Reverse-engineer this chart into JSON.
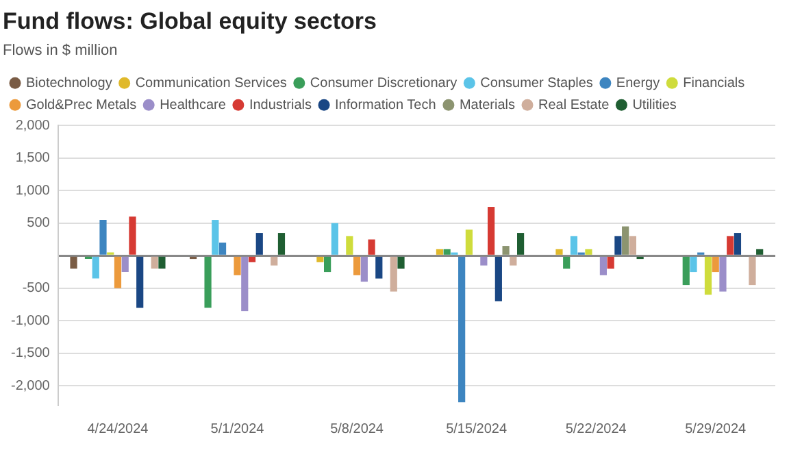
{
  "chart_data": {
    "type": "bar",
    "title": "Fund flows: Global equity sectors",
    "subtitle": "Flows in $ million",
    "categories": [
      "4/24/2024",
      "5/1/2024",
      "5/8/2024",
      "5/15/2024",
      "5/22/2024",
      "5/29/2024"
    ],
    "series": [
      {
        "name": "Biotechnology",
        "color": "#7a5c45",
        "values": [
          -200,
          -50,
          0,
          0,
          0,
          0
        ]
      },
      {
        "name": "Communication Services",
        "color": "#e0b92b",
        "values": [
          0,
          0,
          -100,
          100,
          100,
          0
        ]
      },
      {
        "name": "Consumer Discretionary",
        "color": "#3a9e5a",
        "values": [
          -50,
          -800,
          -250,
          100,
          -200,
          -450
        ]
      },
      {
        "name": "Consumer Staples",
        "color": "#5bc4e8",
        "values": [
          -350,
          550,
          500,
          50,
          300,
          -250
        ]
      },
      {
        "name": "Energy",
        "color": "#3d85c0",
        "values": [
          550,
          200,
          0,
          -2250,
          50,
          50
        ]
      },
      {
        "name": "Financials",
        "color": "#cfdc3c",
        "values": [
          50,
          0,
          300,
          400,
          100,
          -600
        ]
      },
      {
        "name": "Gold&Prec Metals",
        "color": "#ec9a3c",
        "values": [
          -500,
          -300,
          -300,
          0,
          0,
          -250
        ]
      },
      {
        "name": "Healthcare",
        "color": "#9b8ec9",
        "values": [
          -250,
          -850,
          -400,
          -150,
          -300,
          -550
        ]
      },
      {
        "name": "Industrials",
        "color": "#d63a33",
        "values": [
          600,
          -100,
          250,
          750,
          -200,
          300
        ]
      },
      {
        "name": "Information Tech",
        "color": "#1a4784",
        "values": [
          -800,
          350,
          -350,
          -700,
          300,
          350
        ]
      },
      {
        "name": "Materials",
        "color": "#8c9470",
        "values": [
          0,
          0,
          0,
          150,
          450,
          0
        ]
      },
      {
        "name": "Real Estate",
        "color": "#cfae9c",
        "values": [
          -200,
          -150,
          -550,
          -150,
          300,
          -450
        ]
      },
      {
        "name": "Utilities",
        "color": "#1f5e32",
        "values": [
          -200,
          350,
          -200,
          350,
          -50,
          100
        ]
      }
    ],
    "ylim": [
      -2300,
      2000
    ],
    "yticks": [
      {
        "value": -2000,
        "label": "-2,000"
      },
      {
        "value": -1500,
        "label": "-1,500"
      },
      {
        "value": -1000,
        "label": "-1,000"
      },
      {
        "value": -500,
        "label": "-500"
      },
      {
        "value": 0,
        "label": null
      },
      {
        "value": 500,
        "label": "500"
      },
      {
        "value": 1000,
        "label": "1,000"
      },
      {
        "value": 1500,
        "label": "1,500"
      },
      {
        "value": 2000,
        "label": "2,000"
      }
    ],
    "grid": "y",
    "legend": "top"
  }
}
